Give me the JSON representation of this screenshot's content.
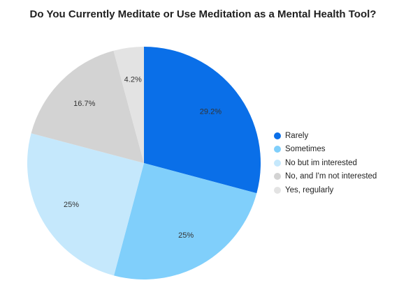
{
  "chart_data": {
    "type": "pie",
    "title": "Do You Currently Meditate or Use Meditation as a Mental Health Tool?",
    "slices": [
      {
        "name": "Rarely",
        "value": 29.2,
        "label": "29.2%",
        "color": "#0a6fe8"
      },
      {
        "name": "Sometimes",
        "value": 25,
        "label": "25%",
        "color": "#80cffb"
      },
      {
        "name": "No but im interested",
        "value": 25,
        "label": "25%",
        "color": "#c5e8fc"
      },
      {
        "name": "No, and I'm not interested",
        "value": 16.7,
        "label": "16.7%",
        "color": "#d3d3d3"
      },
      {
        "name": "Yes, regularly",
        "value": 4.2,
        "label": "4.2%",
        "color": "#e3e3e3"
      }
    ],
    "start": "12 o'clock",
    "direction": "clockwise",
    "legend_position": "right"
  }
}
